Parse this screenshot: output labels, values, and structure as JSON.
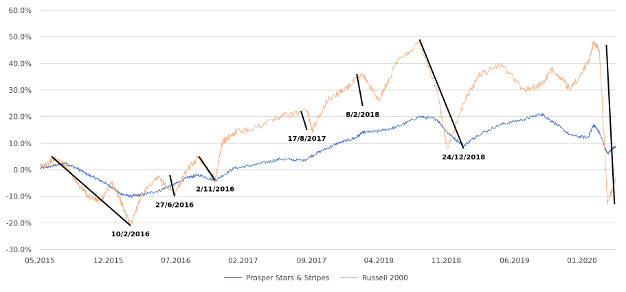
{
  "chart_data": {
    "type": "line",
    "title": "",
    "xlabel": "",
    "ylabel": "",
    "ylim": [
      -30,
      60
    ],
    "xlim": [
      2015.33,
      2020.29
    ],
    "y_ticks": [
      -30,
      -20,
      -10,
      0,
      10,
      20,
      30,
      40,
      50,
      60
    ],
    "y_tick_labels": [
      "-30.0%",
      "-20.0%",
      "-10.0%",
      "0.0%",
      "10.0%",
      "20.0%",
      "30.0%",
      "40.0%",
      "50.0%",
      "60.0%"
    ],
    "x_ticks": [
      2015.33,
      2015.92,
      2016.5,
      2017.08,
      2017.67,
      2018.25,
      2018.83,
      2019.42,
      2020.0
    ],
    "x_tick_labels": [
      "05.2015",
      "12.2015",
      "07.2016",
      "02.2017",
      "09.2017",
      "04.2018",
      "11.2018",
      "06.2019",
      "01.2020"
    ],
    "grid": "horizontal",
    "legend_position": "bottom",
    "series": [
      {
        "name": "Prosper Stars & Stripes",
        "color": "#4472C4",
        "x": [
          2015.33,
          2015.45,
          2015.55,
          2015.65,
          2015.75,
          2015.85,
          2015.95,
          2016.02,
          2016.11,
          2016.2,
          2016.35,
          2016.49,
          2016.6,
          2016.7,
          2016.84,
          2017.0,
          2017.2,
          2017.4,
          2017.6,
          2017.75,
          2017.9,
          2018.05,
          2018.11,
          2018.25,
          2018.4,
          2018.6,
          2018.75,
          2018.84,
          2018.98,
          2019.1,
          2019.3,
          2019.5,
          2019.65,
          2019.75,
          2019.9,
          2020.05,
          2020.1,
          2020.15,
          2020.22,
          2020.29
        ],
        "values": [
          0.5,
          1.5,
          2.5,
          0.5,
          -2.0,
          -4.0,
          -6.5,
          -9.0,
          -10.0,
          -9.5,
          -8.0,
          -5.5,
          -3.0,
          -2.0,
          -4.0,
          0.5,
          2.0,
          4.0,
          3.5,
          7.0,
          10.0,
          12.0,
          14.0,
          14.5,
          16.0,
          20.0,
          19.0,
          14.0,
          9.0,
          13.0,
          17.0,
          19.0,
          21.0,
          18.0,
          13.0,
          12.0,
          17.0,
          14.0,
          6.0,
          9.0
        ]
      },
      {
        "name": "Russell 2000",
        "color": "#F4B183",
        "x": [
          2015.33,
          2015.45,
          2015.55,
          2015.65,
          2015.75,
          2015.85,
          2015.95,
          2016.02,
          2016.11,
          2016.2,
          2016.35,
          2016.49,
          2016.6,
          2016.7,
          2016.84,
          2016.9,
          2017.0,
          2017.2,
          2017.4,
          2017.63,
          2017.68,
          2017.8,
          2017.95,
          2018.11,
          2018.25,
          2018.4,
          2018.6,
          2018.75,
          2018.84,
          2018.98,
          2019.1,
          2019.3,
          2019.5,
          2019.65,
          2019.75,
          2019.9,
          2020.05,
          2020.1,
          2020.15,
          2020.22,
          2020.29
        ],
        "values": [
          1.0,
          4.0,
          2.0,
          -5.0,
          -10.0,
          -12.0,
          -5.0,
          -11.0,
          -21.0,
          -10.0,
          -3.0,
          -9.0,
          0.0,
          5.0,
          -4.0,
          10.0,
          14.0,
          16.0,
          20.0,
          22.0,
          15.0,
          26.0,
          30.0,
          36.0,
          26.0,
          40.0,
          48.0,
          30.0,
          8.0,
          25.0,
          35.0,
          40.0,
          30.0,
          32.0,
          38.0,
          30.0,
          40.0,
          48.0,
          45.0,
          -13.0,
          -3.0
        ]
      }
    ],
    "annotations": [
      {
        "label": "10/2/2016",
        "x1": 2015.43,
        "y1": 5.0,
        "x2": 2016.11,
        "y2": -21.0
      },
      {
        "label": "27/6/2016",
        "x1": 2016.45,
        "y1": -2.0,
        "x2": 2016.49,
        "y2": -10.0
      },
      {
        "label": "2/11/2016",
        "x1": 2016.7,
        "y1": 5.0,
        "x2": 2016.84,
        "y2": -4.0
      },
      {
        "label": "17/8/2017",
        "x1": 2017.58,
        "y1": 22.0,
        "x2": 2017.63,
        "y2": 15.0
      },
      {
        "label": "8/2/2018",
        "x1": 2018.06,
        "y1": 36.0,
        "x2": 2018.11,
        "y2": 24.0
      },
      {
        "label": "24/12/2018",
        "x1": 2018.6,
        "y1": 49.0,
        "x2": 2018.98,
        "y2": 8.0
      },
      {
        "label": "",
        "x1": 2020.21,
        "y1": 47.0,
        "x2": 2020.28,
        "y2": -13.0
      }
    ]
  }
}
